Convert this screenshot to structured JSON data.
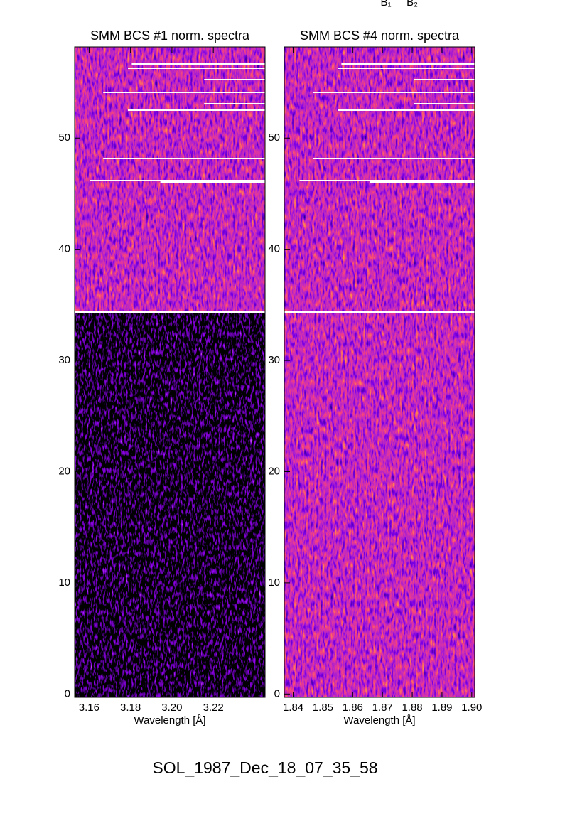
{
  "title": "SOL_1987_Dec_18_07_35_58",
  "labels": [
    "B₁",
    "B₂"
  ],
  "chart_data": [
    {
      "type": "heatmap",
      "title": "SMM BCS #1 norm. spectra",
      "xlabel": "Wavelength [Å]",
      "xlim": [
        3.153,
        3.245
      ],
      "xticks": [
        3.16,
        3.18,
        {
          "value": 3.2,
          "label": "3.20"
        },
        3.22
      ],
      "ylim": [
        -0.3,
        58.2
      ],
      "yticks": [
        0,
        10,
        20,
        30,
        40,
        50
      ]
    },
    {
      "type": "heatmap",
      "title": "SMM BCS #4 norm. spectra",
      "xlabel": "Wavelength [Å]",
      "xlim": [
        1.837,
        1.901
      ],
      "xticks": [
        1.84,
        1.85,
        1.86,
        1.87,
        1.88,
        1.89,
        {
          "value": 1.9,
          "label": "1.90"
        }
      ],
      "ylim": [
        -0.3,
        58.2
      ],
      "yticks": [
        0,
        10,
        20,
        30,
        40,
        50
      ]
    }
  ]
}
